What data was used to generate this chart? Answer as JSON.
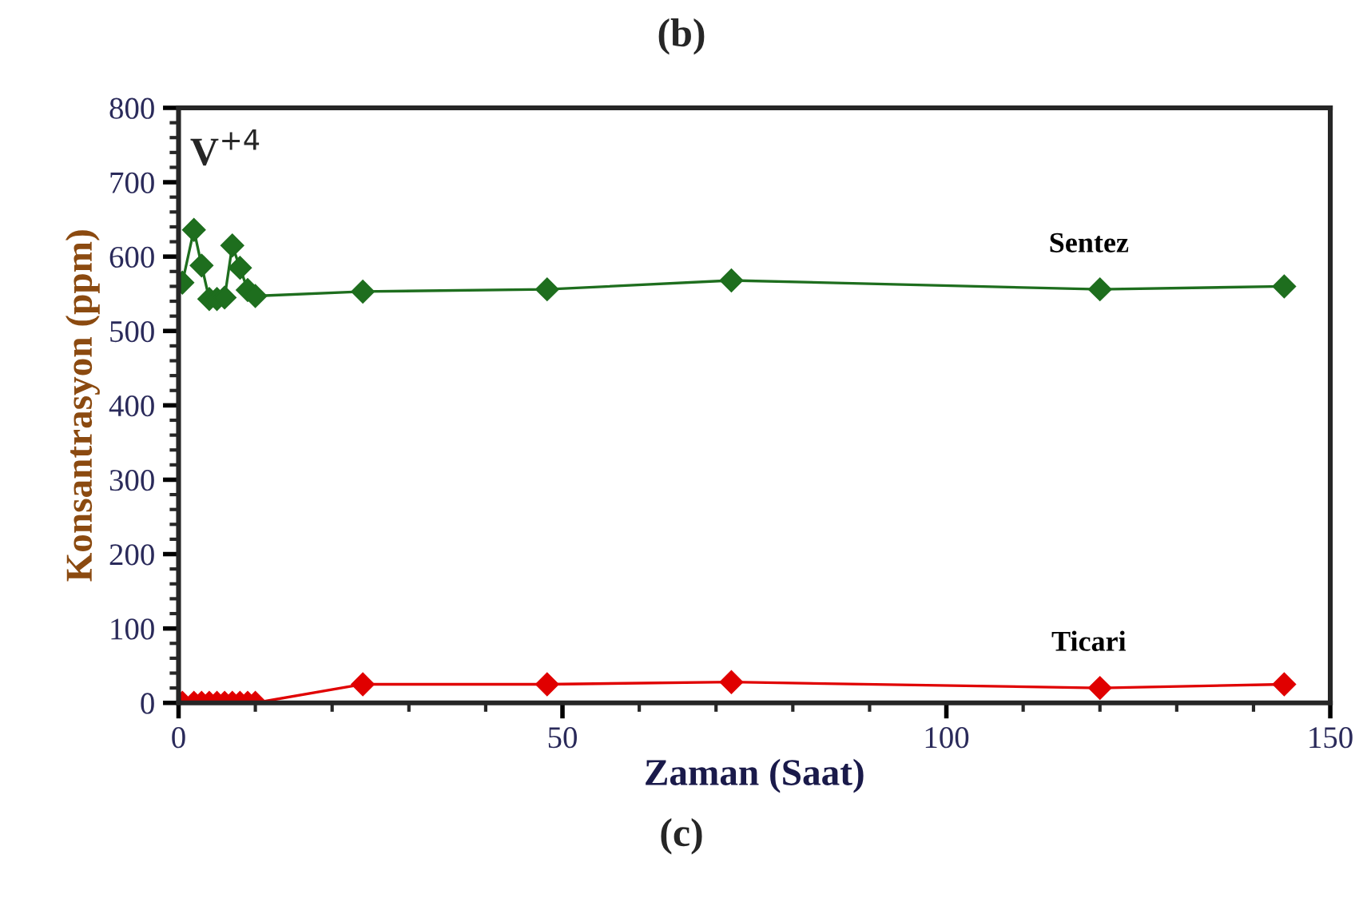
{
  "chart_data": {
    "type": "line",
    "title": "(b)",
    "xlabel": "Zaman (Saat)",
    "ylabel": "Konsantrasyon (ppm)",
    "x": [
      0.5,
      2,
      3,
      4,
      5,
      6,
      7,
      8,
      9,
      10,
      24,
      48,
      72,
      120,
      144
    ],
    "series": [
      {
        "name": "Sentez",
        "color": "#1e6e1e",
        "values": [
          565,
          636,
          588,
          543,
          543,
          545,
          615,
          585,
          555,
          547,
          553,
          556,
          568,
          556,
          560
        ]
      },
      {
        "name": "Ticari",
        "color": "#e00000",
        "values": [
          0,
          0,
          0,
          0,
          0,
          0,
          0,
          0,
          0,
          0,
          25,
          25,
          28,
          20,
          25
        ]
      }
    ],
    "xlim": [
      0,
      150
    ],
    "xticks": [
      0,
      50,
      100,
      150
    ],
    "ylim": [
      0,
      800
    ],
    "yticks": [
      0,
      100,
      200,
      300,
      400,
      500,
      600,
      700,
      800
    ],
    "marker": "diamond",
    "line_style": "solid",
    "grid": false,
    "legend": false,
    "annotations": [
      "V$^{+4}$",
      "(c)"
    ]
  }
}
